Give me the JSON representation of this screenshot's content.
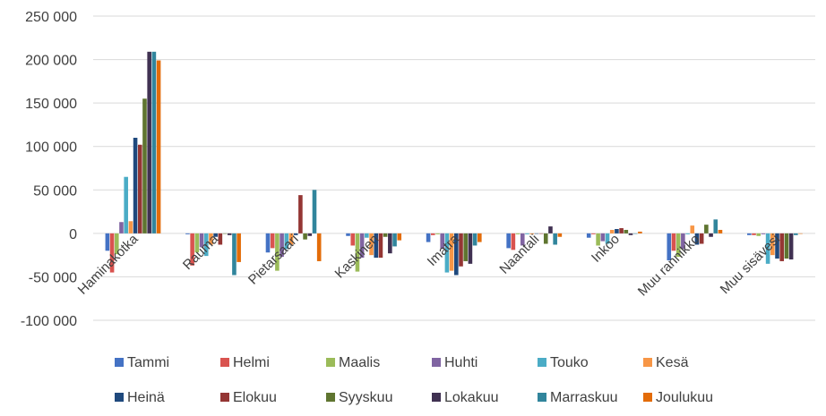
{
  "chart_data": {
    "type": "bar",
    "categories": [
      "Haminakotka",
      "Rauma",
      "Pietarsaari",
      "Kaskinen",
      "Imatra",
      "Naantali",
      "Inkoo",
      "Muu rannikko",
      "Muu sisävesi"
    ],
    "ylim": [
      -100000,
      250000
    ],
    "y_ticks": [
      250000,
      200000,
      150000,
      100000,
      50000,
      0,
      -50000,
      -100000
    ],
    "y_tick_labels": [
      "250 000",
      "200 000",
      "150 000",
      "100 000",
      "50 000",
      "0",
      "-50 000",
      "-100 000"
    ],
    "grid": true,
    "legend_position": "bottom",
    "series": [
      {
        "name": "Tammi",
        "color": "#4472C4",
        "values": [
          -20000,
          -1000,
          -22000,
          -3000,
          -10000,
          -17000,
          -5000,
          -31000,
          -2000
        ]
      },
      {
        "name": "Helmi",
        "color": "#D9534F",
        "values": [
          -45000,
          -37000,
          -17000,
          -14000,
          -2000,
          -19000,
          -1000,
          -20000,
          -2000
        ]
      },
      {
        "name": "Maalis",
        "color": "#9BBB59",
        "values": [
          -24000,
          -22000,
          -43000,
          -44000,
          -1000,
          -1000,
          -14000,
          -27000,
          -3000
        ]
      },
      {
        "name": "Huhti",
        "color": "#8064A2",
        "values": [
          13000,
          -16000,
          -27000,
          -28000,
          -18000,
          -14000,
          -9000,
          -18000,
          -1000
        ]
      },
      {
        "name": "Touko",
        "color": "#4BACC6",
        "values": [
          65000,
          -26000,
          -18000,
          -5000,
          -45000,
          -1000,
          -12000,
          -1000,
          -35000
        ]
      },
      {
        "name": "Kesä",
        "color": "#F79646",
        "values": [
          14000,
          -13000,
          -13000,
          -25000,
          -43000,
          -1000,
          4000,
          9000,
          -25000
        ]
      },
      {
        "name": "Heinä",
        "color": "#1F497D",
        "values": [
          110000,
          -4000,
          -2000,
          -28000,
          -48000,
          0,
          5000,
          -13000,
          -29000
        ]
      },
      {
        "name": "Elokuu",
        "color": "#943634",
        "values": [
          102000,
          -13000,
          44000,
          -28000,
          -38000,
          0,
          6000,
          -12000,
          -32000
        ]
      },
      {
        "name": "Syyskuu",
        "color": "#5F7530",
        "values": [
          155000,
          0,
          -7000,
          -4000,
          -32000,
          -12000,
          4000,
          10000,
          -29000
        ]
      },
      {
        "name": "Lokakuu",
        "color": "#403152",
        "values": [
          209000,
          -2000,
          -3000,
          -23000,
          -35000,
          8000,
          -2000,
          -4000,
          -30000
        ]
      },
      {
        "name": "Marraskuu",
        "color": "#31859C",
        "values": [
          209000,
          -48000,
          50000,
          -15000,
          -14000,
          -13000,
          0,
          16000,
          -2000
        ]
      },
      {
        "name": "Joulukuu",
        "color": "#E36C09",
        "values": [
          199000,
          -33000,
          -32000,
          -8000,
          -10000,
          -4000,
          2000,
          4000,
          0
        ]
      }
    ]
  }
}
